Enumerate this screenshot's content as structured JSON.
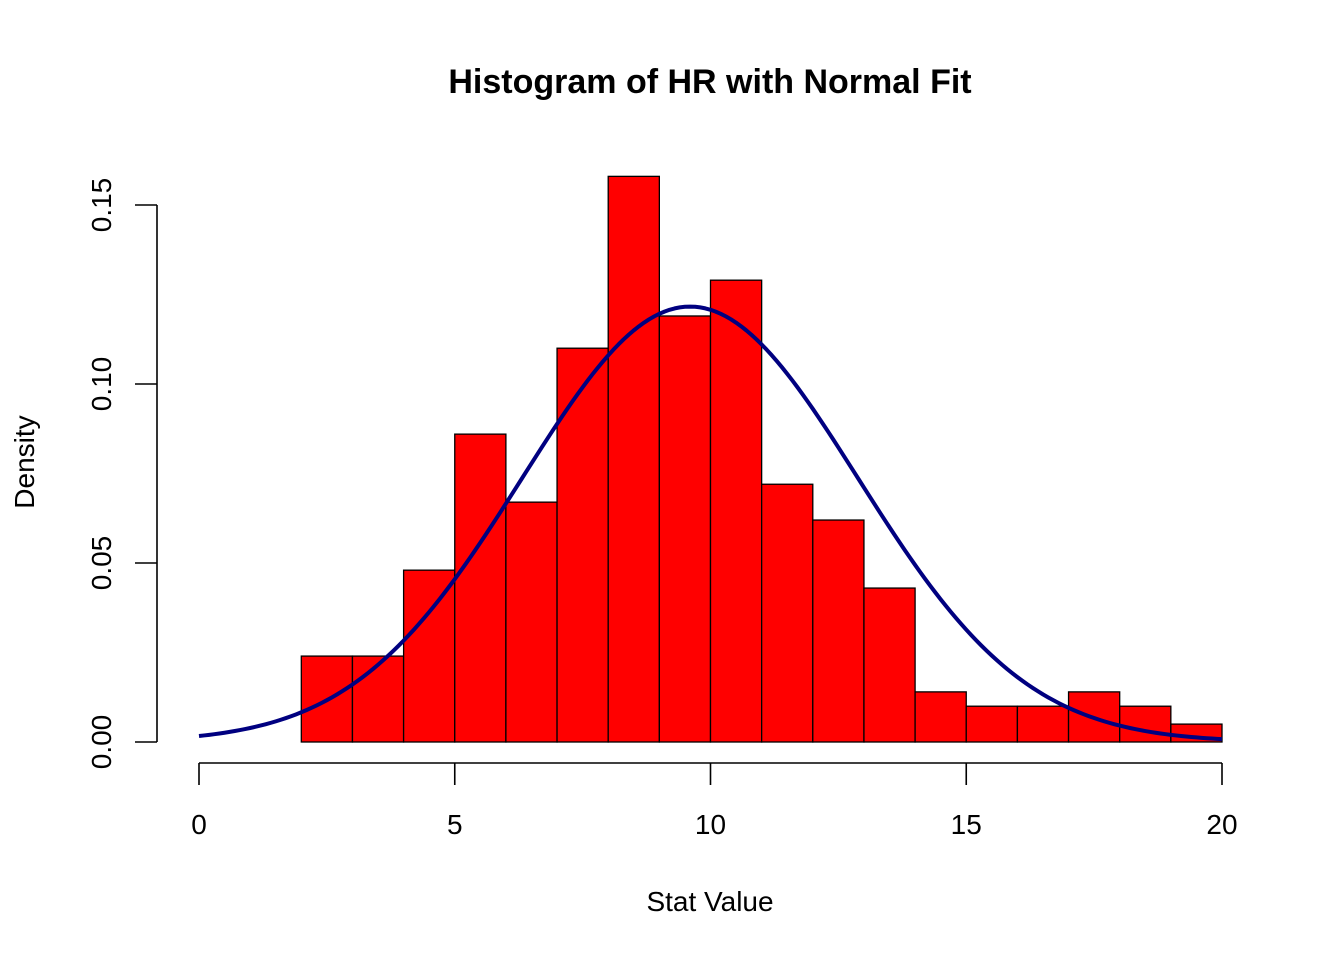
{
  "chart_data": {
    "type": "bar",
    "title": "Histogram of HR with Normal Fit",
    "xlabel": "Stat Value",
    "ylabel": "Density",
    "xlim": [
      0,
      20
    ],
    "ylim": [
      0,
      0.16
    ],
    "x_ticks": [
      0,
      5,
      10,
      15,
      20
    ],
    "x_tick_labels": [
      "0",
      "5",
      "10",
      "15",
      "20"
    ],
    "y_ticks": [
      0,
      0.05,
      0.1,
      0.15
    ],
    "y_tick_labels": [
      "0.00",
      "0.05",
      "0.10",
      "0.15"
    ],
    "bins": [
      {
        "start": 2,
        "end": 3,
        "density": 0.024
      },
      {
        "start": 3,
        "end": 4,
        "density": 0.024
      },
      {
        "start": 4,
        "end": 5,
        "density": 0.048
      },
      {
        "start": 5,
        "end": 6,
        "density": 0.086
      },
      {
        "start": 6,
        "end": 7,
        "density": 0.067
      },
      {
        "start": 7,
        "end": 8,
        "density": 0.11
      },
      {
        "start": 8,
        "end": 9,
        "density": 0.158
      },
      {
        "start": 9,
        "end": 10,
        "density": 0.119
      },
      {
        "start": 10,
        "end": 11,
        "density": 0.129
      },
      {
        "start": 11,
        "end": 12,
        "density": 0.072
      },
      {
        "start": 12,
        "end": 13,
        "density": 0.062
      },
      {
        "start": 13,
        "end": 14,
        "density": 0.043
      },
      {
        "start": 14,
        "end": 15,
        "density": 0.014
      },
      {
        "start": 15,
        "end": 16,
        "density": 0.01
      },
      {
        "start": 16,
        "end": 17,
        "density": 0.01
      },
      {
        "start": 17,
        "end": 18,
        "density": 0.014
      },
      {
        "start": 18,
        "end": 19,
        "density": 0.01
      },
      {
        "start": 19,
        "end": 20,
        "density": 0.005
      }
    ],
    "normal_fit": {
      "mean": 9.6,
      "sd": 3.28,
      "x_range": [
        0,
        20
      ]
    },
    "grid": false,
    "legend": "none",
    "colors": {
      "bar_fill": "#ff0000",
      "bar_edge": "#000000",
      "curve": "#000080"
    }
  }
}
